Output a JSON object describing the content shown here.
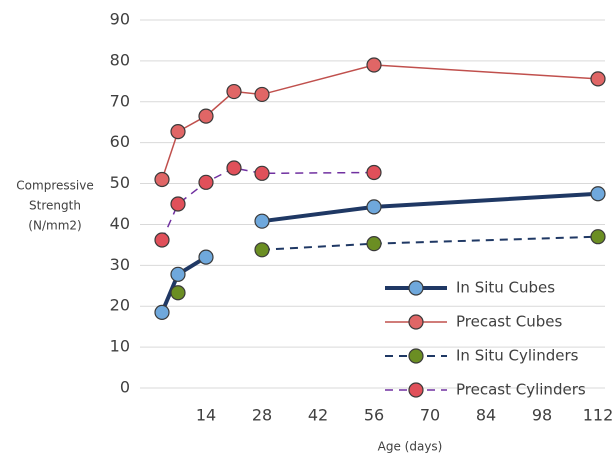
{
  "chart_data": {
    "type": "line",
    "y_label": [
      "Compressive",
      "Strength",
      "(N/mm2)"
    ],
    "x_label": "Age (days)",
    "x": [
      3,
      7,
      14,
      21,
      28,
      56,
      112
    ],
    "series": [
      {
        "name": "In Situ Cubes",
        "color": "#1f3864",
        "marker_color": "#6fa8dc",
        "dash": false,
        "width": 4,
        "values": [
          18.5,
          27.8,
          32,
          null,
          40.8,
          44.3,
          47.5
        ]
      },
      {
        "name": "Precast Cubes",
        "color": "#c0504d",
        "marker_color": "#e06666",
        "dash": false,
        "width": 1.5,
        "values": [
          51,
          62.7,
          66.5,
          72.5,
          71.8,
          79,
          75.6
        ]
      },
      {
        "name": "In Situ Cylinders",
        "color": "#1f3864",
        "marker_color": "#6b8e23",
        "dash": true,
        "width": 2,
        "values": [
          null,
          23.3,
          null,
          null,
          33.8,
          35.3,
          37
        ]
      },
      {
        "name": "Precast Cylinders",
        "color": "#7030a0",
        "marker_color": "#e0505a",
        "dash": true,
        "width": 1.5,
        "values": [
          36.2,
          45,
          50.3,
          53.8,
          52.5,
          52.7,
          null
        ]
      }
    ],
    "xlim": [
      0,
      112
    ],
    "xticks": [
      0,
      14,
      28,
      42,
      56,
      70,
      84,
      98,
      112
    ],
    "ylim": [
      0,
      90
    ],
    "yticks": [
      0,
      10,
      20,
      30,
      40,
      50,
      60,
      70,
      80,
      90
    ],
    "grid": true,
    "legend": "bottom-right"
  }
}
